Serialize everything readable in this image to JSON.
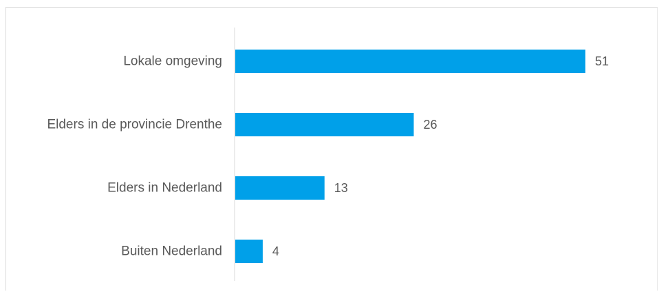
{
  "chart_data": {
    "type": "bar",
    "orientation": "horizontal",
    "categories": [
      "Lokale omgeving",
      "Elders in de provincie Drenthe",
      "Elders in Nederland",
      "Buiten Nederland"
    ],
    "values": [
      51,
      26,
      13,
      4
    ],
    "data_labels": [
      "51",
      "26",
      "13",
      "4"
    ],
    "title": "",
    "xlabel": "",
    "ylabel": "",
    "xlim": [
      0,
      51
    ],
    "grid": false,
    "legend": "none",
    "bar_color": "#00A0E9",
    "text_color": "#595959",
    "axis_color": "#d9d9d9"
  }
}
